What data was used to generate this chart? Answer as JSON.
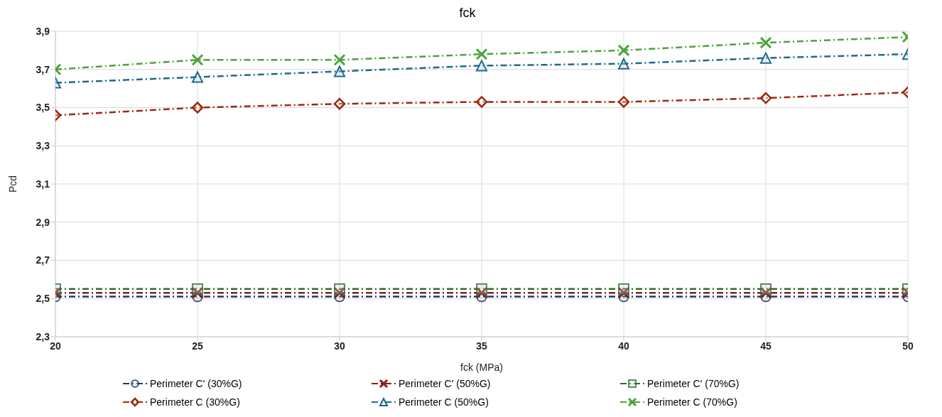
{
  "chart_data": {
    "type": "line",
    "title": "fck",
    "xlabel": "fck (MPa)",
    "ylabel": "Pcd",
    "x": [
      20,
      25,
      30,
      35,
      40,
      45,
      50
    ],
    "xlim": [
      20,
      50
    ],
    "xticks": [
      20,
      25,
      30,
      35,
      40,
      45,
      50
    ],
    "ylim": [
      2.3,
      3.9
    ],
    "yticks": [
      {
        "value": 2.3,
        "label": "2,3"
      },
      {
        "value": 2.5,
        "label": "2,5"
      },
      {
        "value": 2.7,
        "label": "2,7"
      },
      {
        "value": 2.9,
        "label": "2,9"
      },
      {
        "value": 3.1,
        "label": "3,1"
      },
      {
        "value": 3.3,
        "label": "3,3"
      },
      {
        "value": 3.5,
        "label": "3,5"
      },
      {
        "value": 3.7,
        "label": "3,7"
      },
      {
        "value": 3.9,
        "label": "3,9"
      }
    ],
    "grid": true,
    "legend": "bottom",
    "line_style": "dashed",
    "series": [
      {
        "name": "Perimeter C' (30%G)",
        "color": "#1f3864",
        "marker": "circle",
        "values": [
          2.51,
          2.51,
          2.51,
          2.51,
          2.51,
          2.51,
          2.51
        ]
      },
      {
        "name": "Perimeter C' (50%G)",
        "color": "#8b1a1a",
        "marker": "cross",
        "values": [
          2.53,
          2.53,
          2.53,
          2.53,
          2.53,
          2.53,
          2.53
        ]
      },
      {
        "name": "Perimeter C' (70%G)",
        "color": "#2e6b2e",
        "marker": "square",
        "values": [
          2.55,
          2.55,
          2.55,
          2.55,
          2.55,
          2.55,
          2.55
        ]
      },
      {
        "name": "Perimeter C (30%G)",
        "color": "#9c2a0c",
        "marker": "diamond",
        "values": [
          3.46,
          3.5,
          3.52,
          3.53,
          3.53,
          3.55,
          3.58
        ]
      },
      {
        "name": "Perimeter C (50%G)",
        "color": "#1d6a8a",
        "marker": "triangle",
        "values": [
          3.63,
          3.66,
          3.69,
          3.72,
          3.73,
          3.76,
          3.78
        ]
      },
      {
        "name": "Perimeter C (70%G)",
        "color": "#4ca43a",
        "marker": "cross",
        "values": [
          3.7,
          3.75,
          3.75,
          3.78,
          3.8,
          3.84,
          3.87
        ]
      }
    ]
  }
}
